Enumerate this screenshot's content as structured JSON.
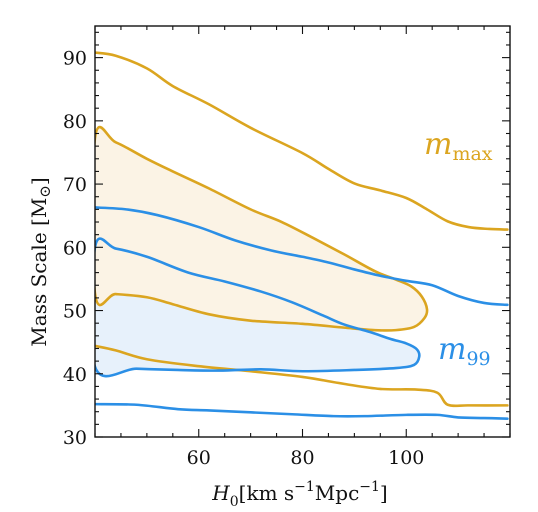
{
  "chart_data": {
    "type": "contour",
    "xlabel": {
      "symbol": "H",
      "sub": "0",
      "units_open": "[km s",
      "sup1": "−1",
      "units_mid": "Mpc",
      "sup2": "−1",
      "units_close": "]"
    },
    "ylabel": {
      "text": "Mass Scale [M",
      "sun": "⊙",
      "close": "]"
    },
    "xlim": [
      40,
      120
    ],
    "ylim": [
      30,
      95
    ],
    "xticks": [
      60,
      80,
      100
    ],
    "xtick_labels": [
      "60",
      "80",
      "100"
    ],
    "yticks": [
      30,
      40,
      50,
      60,
      70,
      80,
      90
    ],
    "ytick_labels": [
      "30",
      "40",
      "50",
      "60",
      "70",
      "80",
      "90"
    ],
    "grid": false,
    "series": [
      {
        "name": "m_max",
        "label_main": "m",
        "label_sub": "max",
        "color": "#DBA520",
        "fill": "#FBF3E5",
        "outer_upper": [
          [
            40,
            90.8
          ],
          [
            44,
            90.3
          ],
          [
            50,
            88.3
          ],
          [
            55,
            85.5
          ],
          [
            62,
            82.6
          ],
          [
            70,
            78.9
          ],
          [
            80,
            74.9
          ],
          [
            85,
            72.4
          ],
          [
            90,
            70.1
          ],
          [
            95,
            69.0
          ],
          [
            100,
            67.8
          ],
          [
            104,
            66.0
          ],
          [
            108,
            64.1
          ],
          [
            112,
            63.2
          ],
          [
            116,
            62.9
          ],
          [
            119.5,
            62.8
          ]
        ],
        "outer_lower": [
          [
            40,
            44.4
          ],
          [
            44,
            43.7
          ],
          [
            50,
            42.3
          ],
          [
            60,
            41.2
          ],
          [
            70,
            40.4
          ],
          [
            80,
            39.5
          ],
          [
            88,
            38.4
          ],
          [
            95,
            37.6
          ],
          [
            102,
            37.5
          ],
          [
            106,
            37.0
          ],
          [
            108,
            35.1
          ],
          [
            112,
            35.0
          ],
          [
            119.5,
            35.0
          ]
        ],
        "inner": [
          [
            40,
            77.3
          ],
          [
            44,
            76.6
          ],
          [
            50,
            74.0
          ],
          [
            55,
            72.0
          ],
          [
            62,
            69.3
          ],
          [
            70,
            66.0
          ],
          [
            76,
            64.0
          ],
          [
            82,
            61.5
          ],
          [
            88,
            58.9
          ],
          [
            94,
            56.2
          ],
          [
            98,
            54.9
          ],
          [
            101,
            53.8
          ],
          [
            103,
            52.2
          ],
          [
            104,
            50.2
          ],
          [
            103.5,
            48.8
          ],
          [
            101.5,
            47.4
          ],
          [
            98,
            46.9
          ],
          [
            94,
            46.9
          ],
          [
            88,
            47.3
          ],
          [
            80,
            47.9
          ],
          [
            70,
            48.4
          ],
          [
            62,
            49.4
          ],
          [
            55,
            51.0
          ],
          [
            50,
            52.1
          ],
          [
            44,
            52.6
          ],
          [
            40,
            52.7
          ]
        ]
      },
      {
        "name": "m_99",
        "label_main": "m",
        "label_sub": "99",
        "color": "#2B8FE6",
        "fill": "#E7F1FB",
        "outer_upper": [
          [
            40,
            66.3
          ],
          [
            46,
            66.0
          ],
          [
            52,
            65.1
          ],
          [
            60,
            63.2
          ],
          [
            67,
            61.1
          ],
          [
            74,
            59.5
          ],
          [
            80,
            58.5
          ],
          [
            85,
            57.6
          ],
          [
            90,
            56.5
          ],
          [
            95,
            55.5
          ],
          [
            100,
            54.7
          ],
          [
            105,
            54.0
          ],
          [
            110,
            52.3
          ],
          [
            115,
            51.2
          ],
          [
            119.5,
            50.9
          ]
        ],
        "outer_lower": [
          [
            40,
            35.2
          ],
          [
            48,
            35.1
          ],
          [
            56,
            34.4
          ],
          [
            62,
            34.2
          ],
          [
            70,
            33.9
          ],
          [
            78,
            33.6
          ],
          [
            86,
            33.3
          ],
          [
            92,
            33.3
          ],
          [
            100,
            33.5
          ],
          [
            106,
            33.5
          ],
          [
            110,
            33.1
          ],
          [
            115,
            33.0
          ],
          [
            119.5,
            32.9
          ]
        ],
        "inner": [
          [
            40,
            60.0
          ],
          [
            44,
            59.8
          ],
          [
            50,
            58.5
          ],
          [
            58,
            56.0
          ],
          [
            65,
            54.6
          ],
          [
            72,
            53.0
          ],
          [
            78,
            51.3
          ],
          [
            84,
            49.2
          ],
          [
            88,
            47.8
          ],
          [
            93,
            46.6
          ],
          [
            97,
            45.5
          ],
          [
            100,
            44.8
          ],
          [
            102,
            43.9
          ],
          [
            102.5,
            42.7
          ],
          [
            101.5,
            41.4
          ],
          [
            98,
            40.9
          ],
          [
            90,
            40.6
          ],
          [
            80,
            40.4
          ],
          [
            72,
            40.7
          ],
          [
            64,
            40.5
          ],
          [
            56,
            40.6
          ],
          [
            48,
            40.8
          ],
          [
            40,
            41.1
          ]
        ]
      }
    ]
  }
}
